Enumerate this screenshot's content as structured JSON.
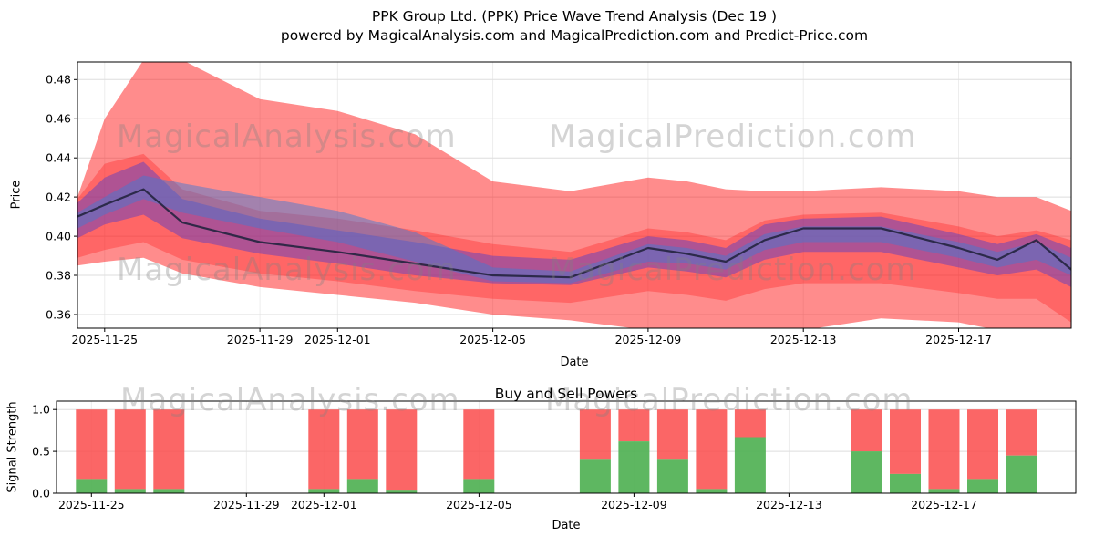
{
  "watermarks": {
    "analysis": "MagicalAnalysis.com",
    "prediction": "MagicalPrediction.com"
  },
  "chart_data": [
    {
      "type": "area",
      "title": "PPK Group Ltd. (PPK) Price Wave Trend Analysis (Dec 19 )",
      "subtitle": "powered by MagicalAnalysis.com and MagicalPrediction.com and Predict-Price.com",
      "xlabel": "Date",
      "ylabel": "Price",
      "xlim": [
        -0.7,
        24.9
      ],
      "ylim": [
        0.353,
        0.489
      ],
      "grid": true,
      "legend": "none",
      "yticks": [
        {
          "v": 0.36,
          "label": "0.36"
        },
        {
          "v": 0.38,
          "label": "0.38"
        },
        {
          "v": 0.4,
          "label": "0.40"
        },
        {
          "v": 0.42,
          "label": "0.42"
        },
        {
          "v": 0.44,
          "label": "0.44"
        },
        {
          "v": 0.46,
          "label": "0.46"
        },
        {
          "v": 0.48,
          "label": "0.48"
        }
      ],
      "xticks": [
        {
          "day": 0,
          "label": "2025-11-25"
        },
        {
          "day": 4,
          "label": "2025-11-29"
        },
        {
          "day": 6,
          "label": "2025-12-01"
        },
        {
          "day": 10,
          "label": "2025-12-05"
        },
        {
          "day": 14,
          "label": "2025-12-09"
        },
        {
          "day": 18,
          "label": "2025-12-13"
        },
        {
          "day": 22,
          "label": "2025-12-17"
        }
      ],
      "x_days": [
        -0.7,
        0,
        1,
        2,
        4,
        6,
        8,
        10,
        12,
        14,
        15,
        16,
        17,
        18,
        20,
        22,
        23,
        24,
        24.9
      ],
      "bands": [
        {
          "name": "outer-red",
          "color": "#ff0000",
          "opacity": 0.45,
          "upper": [
            0.42,
            0.46,
            0.49,
            0.49,
            0.47,
            0.464,
            0.452,
            0.428,
            0.423,
            0.43,
            0.428,
            0.424,
            0.423,
            0.423,
            0.425,
            0.423,
            0.42,
            0.42,
            0.413
          ],
          "lower": [
            0.385,
            0.387,
            0.389,
            0.381,
            0.374,
            0.37,
            0.366,
            0.36,
            0.357,
            0.352,
            0.35,
            0.349,
            0.35,
            0.352,
            0.358,
            0.356,
            0.352,
            0.34,
            0.336
          ]
        },
        {
          "name": "inner-red",
          "color": "#ff1f1f",
          "opacity": 0.35,
          "upper": [
            0.419,
            0.437,
            0.442,
            0.424,
            0.413,
            0.409,
            0.403,
            0.396,
            0.392,
            0.404,
            0.402,
            0.398,
            0.408,
            0.411,
            0.412,
            0.405,
            0.4,
            0.403,
            0.398
          ],
          "lower": [
            0.389,
            0.393,
            0.397,
            0.388,
            0.381,
            0.377,
            0.372,
            0.368,
            0.366,
            0.372,
            0.37,
            0.367,
            0.373,
            0.376,
            0.376,
            0.371,
            0.368,
            0.368,
            0.356
          ]
        },
        {
          "name": "purple",
          "color": "#6040c0",
          "opacity": 0.5,
          "upper": [
            0.417,
            0.43,
            0.438,
            0.419,
            0.409,
            0.403,
            0.397,
            0.39,
            0.388,
            0.4,
            0.398,
            0.394,
            0.406,
            0.409,
            0.41,
            0.401,
            0.396,
            0.401,
            0.394
          ],
          "lower": [
            0.399,
            0.406,
            0.411,
            0.399,
            0.391,
            0.386,
            0.38,
            0.376,
            0.375,
            0.384,
            0.382,
            0.379,
            0.388,
            0.392,
            0.392,
            0.384,
            0.38,
            0.383,
            0.374
          ]
        },
        {
          "name": "blue",
          "color": "#4878d0",
          "opacity": 0.5,
          "upper": [
            0.412,
            0.42,
            0.431,
            0.427,
            0.42,
            0.413,
            0.402,
            0.384,
            0.382,
            0.396,
            0.394,
            0.39,
            0.401,
            0.405,
            0.405,
            0.397,
            0.392,
            0.397,
            0.389
          ],
          "lower": [
            0.404,
            0.411,
            0.419,
            0.412,
            0.404,
            0.397,
            0.387,
            0.377,
            0.376,
            0.387,
            0.386,
            0.383,
            0.393,
            0.397,
            0.397,
            0.389,
            0.384,
            0.388,
            0.38
          ]
        }
      ],
      "center_line": {
        "color": "#23233f",
        "width": 2.2,
        "y": [
          0.41,
          0.416,
          0.424,
          0.407,
          0.397,
          0.392,
          0.386,
          0.38,
          0.379,
          0.394,
          0.391,
          0.387,
          0.398,
          0.404,
          0.404,
          0.394,
          0.388,
          0.398,
          0.383
        ]
      }
    },
    {
      "type": "bar",
      "title": "Buy and Sell Powers",
      "xlabel": "Date",
      "ylabel": "Signal Strength",
      "xlim": [
        -0.9,
        25.4
      ],
      "ylim": [
        0,
        1.1
      ],
      "grid": true,
      "bar_width_days": 0.8,
      "bar_total": 1.0,
      "colors": {
        "sell": "#fa4b4b",
        "buy": "#4caf50"
      },
      "yticks": [
        {
          "v": 0.0,
          "label": "0.0"
        },
        {
          "v": 0.5,
          "label": "0.5"
        },
        {
          "v": 1.0,
          "label": "1.0"
        }
      ],
      "xticks": [
        {
          "day": 0,
          "label": "2025-11-25"
        },
        {
          "day": 4,
          "label": "2025-11-29"
        },
        {
          "day": 6,
          "label": "2025-12-01"
        },
        {
          "day": 10,
          "label": "2025-12-05"
        },
        {
          "day": 14,
          "label": "2025-12-09"
        },
        {
          "day": 18,
          "label": "2025-12-13"
        },
        {
          "day": 22,
          "label": "2025-12-17"
        }
      ],
      "bars": [
        {
          "date": "2025-11-25",
          "day": 0,
          "buy": 0.17
        },
        {
          "date": "2025-11-26",
          "day": 1,
          "buy": 0.05
        },
        {
          "date": "2025-11-27",
          "day": 2,
          "buy": 0.05
        },
        {
          "date": "2025-12-01",
          "day": 6,
          "buy": 0.05
        },
        {
          "date": "2025-12-02",
          "day": 7,
          "buy": 0.17
        },
        {
          "date": "2025-12-03",
          "day": 8,
          "buy": 0.03
        },
        {
          "date": "2025-12-05",
          "day": 10,
          "buy": 0.17
        },
        {
          "date": "2025-12-08",
          "day": 13,
          "buy": 0.4
        },
        {
          "date": "2025-12-09",
          "day": 14,
          "buy": 0.62
        },
        {
          "date": "2025-12-10",
          "day": 15,
          "buy": 0.4
        },
        {
          "date": "2025-12-11",
          "day": 16,
          "buy": 0.05
        },
        {
          "date": "2025-12-12",
          "day": 17,
          "buy": 0.67
        },
        {
          "date": "2025-12-15",
          "day": 20,
          "buy": 0.5
        },
        {
          "date": "2025-12-16",
          "day": 21,
          "buy": 0.23
        },
        {
          "date": "2025-12-17",
          "day": 22,
          "buy": 0.05
        },
        {
          "date": "2025-12-18",
          "day": 23,
          "buy": 0.17
        },
        {
          "date": "2025-12-19",
          "day": 24,
          "buy": 0.45
        }
      ]
    }
  ]
}
